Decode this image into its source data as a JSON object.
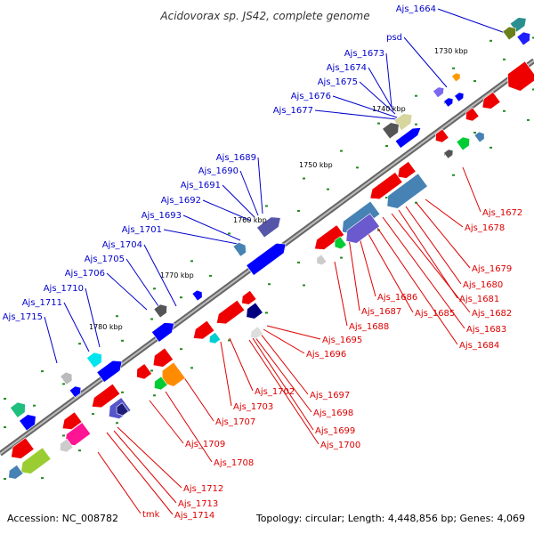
{
  "title": "Acidovorax sp. JS42, complete genome",
  "footer": {
    "accession": "Accession: NC_008782",
    "summary": "Topology: circular; Length: 4,448,856 bp; Genes: 4,069"
  },
  "scale_labels": [
    "1730 kbp",
    "1740 kbp",
    "1750 kbp",
    "1760 kbp",
    "1770 kbp",
    "1780 kbp"
  ],
  "colors": {
    "forward_label": "#0000cc",
    "reverse_label": "#dd0000",
    "forward_gene": "#0000e0",
    "reverse_gene": "#ee0000",
    "backbone": "#888888",
    "tick": "#228b22"
  },
  "forward_labels": [
    "Ajs_1664",
    "psd",
    "Ajs_1673",
    "Ajs_1674",
    "Ajs_1675",
    "Ajs_1676",
    "Ajs_1677",
    "Ajs_1689",
    "Ajs_1690",
    "Ajs_1691",
    "Ajs_1692",
    "Ajs_1693",
    "Ajs_1701",
    "Ajs_1704",
    "Ajs_1705",
    "Ajs_1706",
    "Ajs_1710",
    "Ajs_1711",
    "Ajs_1715"
  ],
  "reverse_labels": [
    "Ajs_1672",
    "Ajs_1678",
    "Ajs_1679",
    "Ajs_1680",
    "Ajs_1681",
    "Ajs_1682",
    "Ajs_1683",
    "Ajs_1684",
    "Ajs_1685",
    "Ajs_1686",
    "Ajs_1687",
    "Ajs_1688",
    "Ajs_1695",
    "Ajs_1696",
    "Ajs_1697",
    "Ajs_1698",
    "Ajs_1699",
    "Ajs_1700",
    "Ajs_1702",
    "Ajs_1703",
    "Ajs_1707",
    "Ajs_1708",
    "Ajs_1709",
    "Ajs_1712",
    "Ajs_1713",
    "Ajs_1714",
    "tmk"
  ]
}
